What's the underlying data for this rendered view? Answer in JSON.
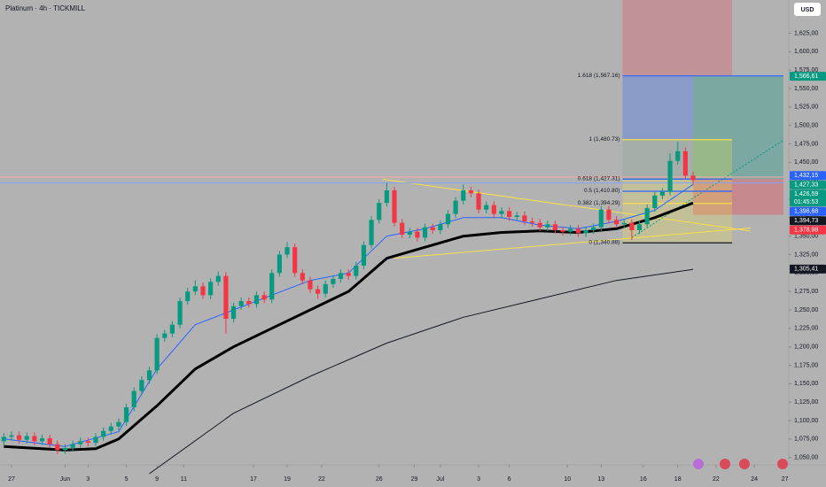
{
  "chart_data": {
    "type": "candlestick",
    "title": "Platinum · 4h · TICKMILL",
    "currency": "USD",
    "xlim": [
      -0.5,
      102.5
    ],
    "ylim": [
      1040,
      1670
    ],
    "xticks": [
      {
        "value": 1,
        "label": "27"
      },
      {
        "value": 8,
        "label": "Jun"
      },
      {
        "value": 11,
        "label": "3"
      },
      {
        "value": 16,
        "label": "5"
      },
      {
        "value": 20,
        "label": "9"
      },
      {
        "value": 23.5,
        "label": "11"
      },
      {
        "value": 32.6,
        "label": "17"
      },
      {
        "value": 37,
        "label": "19"
      },
      {
        "value": 41.5,
        "label": "22"
      },
      {
        "value": 49,
        "label": "26"
      },
      {
        "value": 53.6,
        "label": "29"
      },
      {
        "value": 57,
        "label": "Jul"
      },
      {
        "value": 62,
        "label": "3"
      },
      {
        "value": 66,
        "label": "6"
      },
      {
        "value": 73.6,
        "label": "10"
      },
      {
        "value": 78,
        "label": "13"
      },
      {
        "value": 83.5,
        "label": "16"
      },
      {
        "value": 88,
        "label": "18"
      },
      {
        "value": 93,
        "label": "22"
      },
      {
        "value": 98,
        "label": "24"
      },
      {
        "value": 102,
        "label": "27"
      }
    ],
    "yticks": [
      {
        "value": 1050,
        "label": "1,050,00"
      },
      {
        "value": 1075,
        "label": "1,075,00"
      },
      {
        "value": 1100,
        "label": "1,100,00"
      },
      {
        "value": 1125,
        "label": "1,125,00"
      },
      {
        "value": 1150,
        "label": "1,150,00"
      },
      {
        "value": 1175,
        "label": "1,175,00"
      },
      {
        "value": 1200,
        "label": "1,200,00"
      },
      {
        "value": 1225,
        "label": "1,225,00"
      },
      {
        "value": 1250,
        "label": "1,250,00"
      },
      {
        "value": 1275,
        "label": "1,275,00"
      },
      {
        "value": 1300,
        "label": "1,300,00"
      },
      {
        "value": 1325,
        "label": "1,325,00"
      },
      {
        "value": 1350,
        "label": "1,350,00"
      },
      {
        "value": 1375,
        "label": "1,375,00"
      },
      {
        "value": 1400,
        "label": "1,400,00"
      },
      {
        "value": 1425,
        "label": "1,425,00"
      },
      {
        "value": 1450,
        "label": "1,450,00"
      },
      {
        "value": 1475,
        "label": "1,475,00"
      },
      {
        "value": 1500,
        "label": "1,500,00"
      },
      {
        "value": 1525,
        "label": "1,525,00"
      },
      {
        "value": 1550,
        "label": "1,550,00"
      },
      {
        "value": 1575,
        "label": "1,575,00"
      },
      {
        "value": 1600,
        "label": "1,600,00"
      },
      {
        "value": 1625,
        "label": "1,625,00"
      }
    ],
    "up_color": "#089981",
    "down_color": "#f23645",
    "candles": {
      "open": [
        1072,
        1078,
        1080,
        1074,
        1079,
        1072,
        1076,
        1068,
        1060,
        1063,
        1068,
        1072,
        1070,
        1078,
        1086,
        1092,
        1098,
        1118,
        1140,
        1155,
        1168,
        1212,
        1218,
        1230,
        1262,
        1275,
        1282,
        1270,
        1288,
        1296,
        1238,
        1255,
        1262,
        1258,
        1270,
        1264,
        1300,
        1325,
        1335,
        1300,
        1290,
        1278,
        1272,
        1285,
        1292,
        1300,
        1296,
        1310,
        1338,
        1372,
        1395,
        1412,
        1368,
        1352,
        1356,
        1348,
        1362,
        1358,
        1366,
        1380,
        1398,
        1412,
        1408,
        1386,
        1392,
        1380,
        1384,
        1376,
        1378,
        1370,
        1368,
        1362,
        1366,
        1358,
        1356,
        1360,
        1354,
        1358,
        1362,
        1386,
        1372,
        1366,
        1368,
        1358,
        1366,
        1388,
        1405,
        1410,
        1452,
        1465,
        1432
      ],
      "high": [
        1083,
        1085,
        1085,
        1084,
        1084,
        1081,
        1081,
        1073,
        1068,
        1073,
        1077,
        1077,
        1083,
        1091,
        1097,
        1103,
        1123,
        1145,
        1160,
        1173,
        1217,
        1223,
        1235,
        1267,
        1280,
        1290,
        1287,
        1293,
        1302,
        1301,
        1260,
        1267,
        1267,
        1275,
        1275,
        1305,
        1330,
        1342,
        1340,
        1305,
        1295,
        1283,
        1290,
        1297,
        1305,
        1305,
        1315,
        1343,
        1377,
        1400,
        1422,
        1417,
        1373,
        1361,
        1361,
        1367,
        1367,
        1371,
        1385,
        1403,
        1420,
        1417,
        1413,
        1397,
        1397,
        1389,
        1389,
        1383,
        1383,
        1375,
        1373,
        1371,
        1371,
        1363,
        1365,
        1365,
        1363,
        1367,
        1391,
        1391,
        1377,
        1373,
        1373,
        1371,
        1393,
        1410,
        1415,
        1462,
        1478,
        1470,
        1437
      ],
      "low": [
        1067,
        1073,
        1069,
        1069,
        1067,
        1067,
        1063,
        1055,
        1055,
        1058,
        1063,
        1065,
        1065,
        1073,
        1081,
        1087,
        1093,
        1113,
        1135,
        1150,
        1163,
        1207,
        1213,
        1225,
        1257,
        1270,
        1265,
        1265,
        1283,
        1218,
        1233,
        1250,
        1253,
        1253,
        1259,
        1259,
        1295,
        1320,
        1295,
        1285,
        1273,
        1265,
        1267,
        1280,
        1287,
        1291,
        1291,
        1305,
        1333,
        1367,
        1390,
        1363,
        1347,
        1347,
        1343,
        1343,
        1353,
        1353,
        1361,
        1375,
        1393,
        1403,
        1381,
        1381,
        1375,
        1375,
        1371,
        1371,
        1365,
        1363,
        1357,
        1357,
        1353,
        1351,
        1351,
        1349,
        1349,
        1353,
        1357,
        1367,
        1361,
        1361,
        1345,
        1353,
        1361,
        1383,
        1400,
        1405,
        1447,
        1427,
        1421
      ],
      "close": [
        1078,
        1080,
        1074,
        1079,
        1072,
        1076,
        1068,
        1060,
        1063,
        1068,
        1072,
        1070,
        1078,
        1086,
        1092,
        1098,
        1118,
        1140,
        1155,
        1168,
        1212,
        1218,
        1230,
        1262,
        1275,
        1282,
        1270,
        1288,
        1296,
        1238,
        1255,
        1262,
        1258,
        1270,
        1264,
        1300,
        1325,
        1335,
        1300,
        1290,
        1278,
        1272,
        1285,
        1292,
        1300,
        1296,
        1310,
        1338,
        1372,
        1395,
        1412,
        1368,
        1352,
        1356,
        1348,
        1362,
        1358,
        1366,
        1380,
        1398,
        1412,
        1408,
        1386,
        1392,
        1380,
        1384,
        1376,
        1378,
        1370,
        1368,
        1362,
        1366,
        1358,
        1356,
        1360,
        1354,
        1358,
        1362,
        1386,
        1372,
        1366,
        1368,
        1358,
        1366,
        1388,
        1405,
        1410,
        1452,
        1465,
        1432,
        1426
      ]
    },
    "lines": [
      {
        "color": "#2962ff",
        "width": 1,
        "x": [
          0,
          8,
          15,
          20,
          25,
          30,
          35,
          40,
          45,
          50,
          55,
          60,
          65,
          70,
          75,
          80,
          85,
          90
        ],
        "values": [
          1075,
          1065,
          1085,
          1170,
          1230,
          1250,
          1270,
          1290,
          1300,
          1350,
          1360,
          1375,
          1375,
          1365,
          1360,
          1370,
          1385,
          1420
        ]
      },
      {
        "color": "#000000",
        "width": 3,
        "x": [
          0,
          8,
          12,
          15,
          20,
          25,
          30,
          35,
          40,
          45,
          50,
          55,
          60,
          65,
          70,
          75,
          80,
          85,
          90
        ],
        "values": [
          1065,
          1060,
          1062,
          1075,
          1120,
          1170,
          1200,
          1225,
          1250,
          1275,
          1320,
          1335,
          1350,
          1355,
          1357,
          1355,
          1360,
          1375,
          1395
        ]
      },
      {
        "color": "#131722",
        "width": 1,
        "x": [
          19,
          30,
          40,
          50,
          60,
          70,
          80,
          90
        ],
        "values": [
          1028,
          1110,
          1160,
          1205,
          1240,
          1265,
          1290,
          1305
        ]
      }
    ],
    "boxes": [
      {
        "color": "rgba(242,54,69,0.25)",
        "x": [
          80.8,
          95.1
        ],
        "y": [
          1566.61,
          1670
        ]
      },
      {
        "color": "rgba(41,98,255,0.28)",
        "x": [
          80.8,
          90
        ],
        "y": [
          1427.33,
          1566.61
        ]
      },
      {
        "color": "rgba(8,153,129,0.32)",
        "x": [
          90,
          101.8
        ],
        "y": [
          1427.33,
          1566.61
        ]
      },
      {
        "color": "rgba(242,54,69,0.32)",
        "x": [
          90,
          101.8
        ],
        "y": [
          1378.98,
          1427.33
        ]
      },
      {
        "color": "rgba(255,235,59,0.22)",
        "x": [
          80.8,
          95.1
        ],
        "y": [
          1340.88,
          1480.73
        ]
      }
    ],
    "trendlines": [
      {
        "color": "#f7e04b",
        "dash": false,
        "x": [
          49.5,
          97.5
        ],
        "y": [
          1427,
          1357
        ]
      },
      {
        "color": "#f7e04b",
        "dash": false,
        "x": [
          51,
          97.5
        ],
        "y": [
          1320,
          1361
        ]
      },
      {
        "color": "#089981",
        "dash": true,
        "x": [
          82,
          101.8
        ],
        "y": [
          1348,
          1480
        ]
      },
      {
        "color": "#f7a8a8",
        "dash": false,
        "x": [
          -0.5,
          101.8
        ],
        "y": [
          1430,
          1430
        ]
      },
      {
        "color": "#7fa3f5",
        "dash": false,
        "x": [
          -0.5,
          101.8
        ],
        "y": [
          1422,
          1422
        ]
      }
    ],
    "fib_levels": [
      {
        "value": 1567.16,
        "label": "1.618 (1,567.16)",
        "color": "#2962ff",
        "x": [
          80.8,
          101.8
        ]
      },
      {
        "value": 1480.73,
        "label": "1 (1,480.73)",
        "color": "#f7e04b",
        "x": [
          80.8,
          95.1
        ]
      },
      {
        "value": 1427.31,
        "label": "0.618 (1,427.31)",
        "color": "#2962ff",
        "x": [
          80.8,
          95.1
        ]
      },
      {
        "value": 1410.8,
        "label": "0.5 (1,410.80)",
        "color": "#2962ff",
        "x": [
          80.8,
          95.1
        ]
      },
      {
        "value": 1394.29,
        "label": "0.382 (1,394.29)",
        "color": "#f7e04b",
        "x": [
          80.8,
          95.1
        ]
      },
      {
        "value": 1340.88,
        "label": "0 (1,340.88)",
        "color": "#131722",
        "x": [
          80.8,
          95.1
        ]
      }
    ],
    "price_tags": [
      {
        "value": 1566.61,
        "label": "1,566,61",
        "color": "#089981"
      },
      {
        "value": 1432.15,
        "label": "1,432,15",
        "color": "#2962ff"
      },
      {
        "value": 1427.33,
        "label": "1,427,33",
        "color": "#089981"
      },
      {
        "value": 1426.59,
        "label": "1,426,59",
        "color": "#089981",
        "sub": "01:45:53"
      },
      {
        "value": 1398.88,
        "label": "1,398,88",
        "color": "#2962ff"
      },
      {
        "value": 1394.73,
        "label": "1,394,73",
        "color": "#131722"
      },
      {
        "value": 1378.98,
        "label": "1,378,98",
        "color": "#f23645"
      },
      {
        "value": 1305.41,
        "label": "1,305,41",
        "color": "#131722"
      }
    ]
  }
}
